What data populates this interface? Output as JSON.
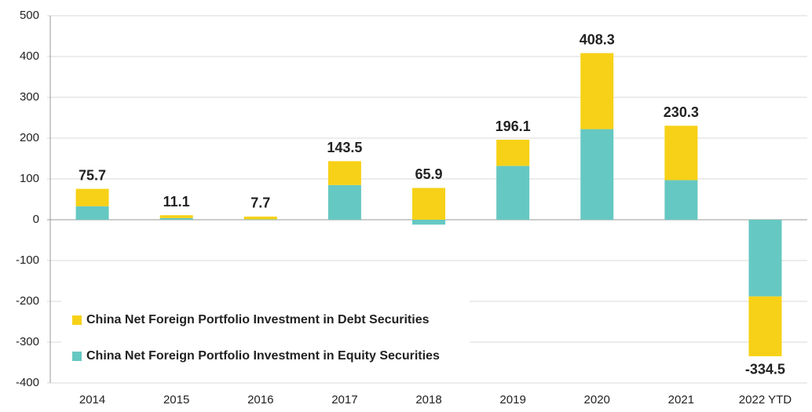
{
  "chart_data": {
    "type": "stacked_bar",
    "categories": [
      "2014",
      "2015",
      "2016",
      "2017",
      "2018",
      "2019",
      "2020",
      "2021",
      "2022 YTD"
    ],
    "series": [
      {
        "name": "China Net Foreign Portfolio Investment in Equity Securities",
        "color": "#66c8c2",
        "values": [
          33,
          4,
          1,
          85,
          -12,
          132,
          222,
          97,
          -188
        ]
      },
      {
        "name": "China Net Foreign Portfolio Investment in Debt Securities",
        "color": "#f7d117",
        "values": [
          42.7,
          7.1,
          6.7,
          58.5,
          77.9,
          64.1,
          186.3,
          133.3,
          -146.5
        ]
      }
    ],
    "totals": [
      75.7,
      11.1,
      7.7,
      143.5,
      65.9,
      196.1,
      408.3,
      230.3,
      -334.5
    ],
    "ylim": [
      -400,
      500
    ],
    "yticks": [
      -400,
      -300,
      -200,
      -100,
      0,
      100,
      200,
      300,
      400,
      500
    ],
    "grid": true,
    "legend": "lower-left"
  }
}
